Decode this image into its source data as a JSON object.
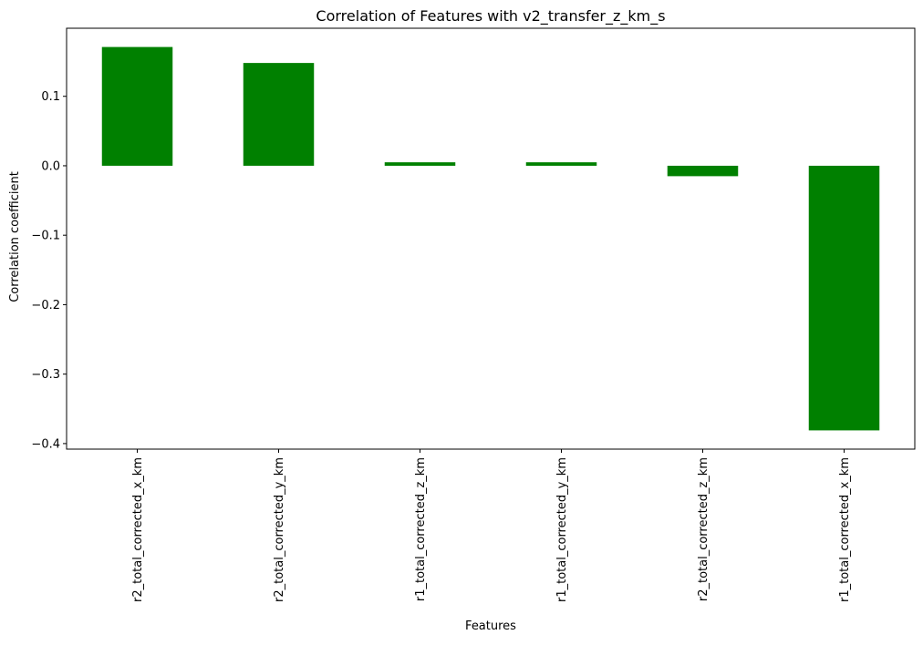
{
  "chart_data": {
    "type": "bar",
    "title": "Correlation of Features with v2_transfer_z_km_s",
    "xlabel": "Features",
    "ylabel": "Correlation coefficient",
    "categories": [
      "r2_total_corrected_x_km",
      "r2_total_corrected_y_km",
      "r1_total_corrected_z_km",
      "r1_total_corrected_y_km",
      "r2_total_corrected_z_km",
      "r1_total_corrected_x_km"
    ],
    "values": [
      0.171,
      0.148,
      0.005,
      0.005,
      -0.015,
      -0.381
    ],
    "ylim": [
      -0.408,
      0.198
    ],
    "yticks": [
      0.1,
      0.0,
      -0.1,
      -0.2,
      -0.3,
      -0.4
    ],
    "ytick_labels": [
      "0.1",
      "0.0",
      "−0.1",
      "−0.2",
      "−0.3",
      "−0.4"
    ],
    "bar_color": "#008000",
    "grid": false,
    "legend": "none"
  }
}
